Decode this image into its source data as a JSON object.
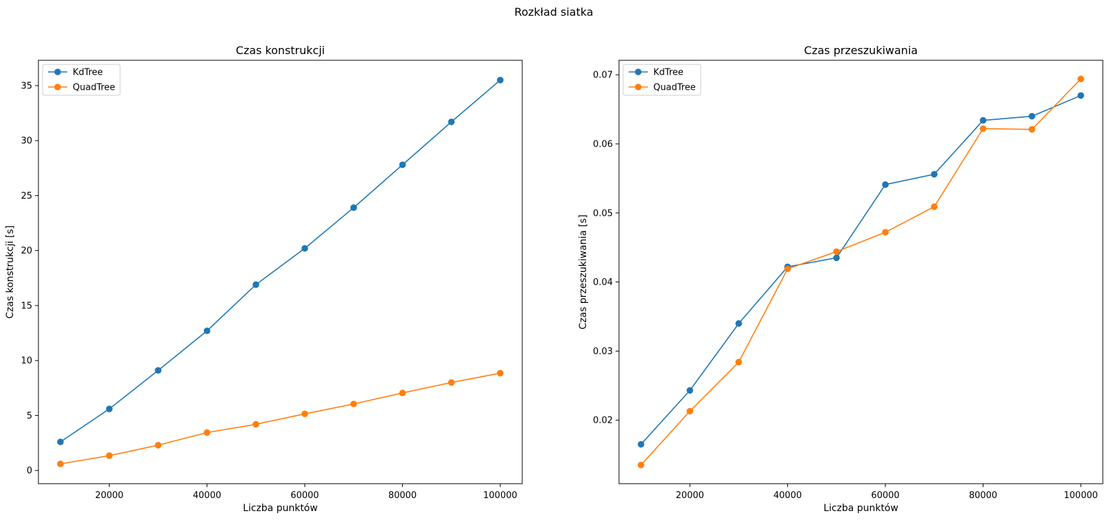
{
  "figure": {
    "suptitle": "Rozkład siatka"
  },
  "chart_data": [
    {
      "type": "line",
      "title": "Czas konstrukcji",
      "xlabel": "Liczba punktów",
      "ylabel": "Czas konstrukcji [s]",
      "x": [
        10000,
        20000,
        30000,
        40000,
        50000,
        60000,
        70000,
        80000,
        90000,
        100000
      ],
      "xlim": [
        5500,
        104500
      ],
      "ylim": [
        -1.2,
        37.3
      ],
      "xticks": [
        20000,
        40000,
        60000,
        80000,
        100000
      ],
      "xtick_labels": [
        "20000",
        "40000",
        "60000",
        "80000",
        "100000"
      ],
      "yticks": [
        0,
        5,
        10,
        15,
        20,
        25,
        30,
        35
      ],
      "ytick_labels": [
        "0",
        "5",
        "10",
        "15",
        "20",
        "25",
        "30",
        "35"
      ],
      "grid": false,
      "legend_position": "top-left",
      "series": [
        {
          "name": "KdTree",
          "color": "#1f77b4",
          "marker": "circle",
          "values": [
            2.6,
            5.6,
            9.1,
            12.7,
            16.9,
            20.2,
            23.9,
            27.8,
            31.7,
            35.5
          ]
        },
        {
          "name": "QuadTree",
          "color": "#ff7f0e",
          "marker": "circle",
          "values": [
            0.6,
            1.35,
            2.3,
            3.45,
            4.2,
            5.15,
            6.05,
            7.05,
            8.0,
            8.85
          ]
        }
      ]
    },
    {
      "type": "line",
      "title": "Czas przeszukiwania",
      "xlabel": "Liczba punktów",
      "ylabel": "Czas przeszukiwania [s]",
      "x": [
        10000,
        20000,
        30000,
        40000,
        50000,
        60000,
        70000,
        80000,
        90000,
        100000
      ],
      "xlim": [
        5500,
        104500
      ],
      "ylim": [
        0.0108,
        0.0721
      ],
      "xticks": [
        20000,
        40000,
        60000,
        80000,
        100000
      ],
      "xtick_labels": [
        "20000",
        "40000",
        "60000",
        "80000",
        "100000"
      ],
      "yticks": [
        0.02,
        0.03,
        0.04,
        0.05,
        0.06,
        0.07
      ],
      "ytick_labels": [
        "0.02",
        "0.03",
        "0.04",
        "0.05",
        "0.06",
        "0.07"
      ],
      "grid": false,
      "legend_position": "top-left",
      "series": [
        {
          "name": "KdTree",
          "color": "#1f77b4",
          "marker": "circle",
          "values": [
            0.0165,
            0.0243,
            0.034,
            0.0422,
            0.0435,
            0.0541,
            0.0556,
            0.0634,
            0.064,
            0.067
          ]
        },
        {
          "name": "QuadTree",
          "color": "#ff7f0e",
          "marker": "circle",
          "values": [
            0.0135,
            0.0213,
            0.0284,
            0.0419,
            0.0444,
            0.0472,
            0.0509,
            0.0622,
            0.0621,
            0.0694
          ]
        }
      ]
    }
  ]
}
